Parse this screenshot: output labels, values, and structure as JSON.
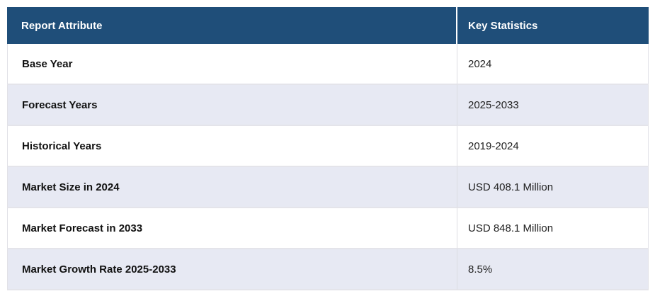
{
  "page": {
    "background": "#ffffff"
  },
  "table": {
    "colors": {
      "header_bg": "#1f4e79",
      "header_text": "#ffffff",
      "row_bg": "#ffffff",
      "row_alt_bg": "#e7e9f3",
      "border": "#e4e4ea",
      "attribute_text": "#111111",
      "value_text": "#222222"
    },
    "columns": [
      {
        "label": "Report Attribute"
      },
      {
        "label": "Key Statistics"
      }
    ],
    "rows": [
      {
        "attribute": "Base Year",
        "value": "2024"
      },
      {
        "attribute": "Forecast Years",
        "value": "2025-2033"
      },
      {
        "attribute": "Historical Years",
        "value": "2019-2024"
      },
      {
        "attribute": "Market Size in 2024",
        "value": "USD 408.1 Million"
      },
      {
        "attribute": "Market Forecast in 2033",
        "value": "USD 848.1 Million"
      },
      {
        "attribute": "Market Growth Rate 2025-2033",
        "value": "8.5%"
      }
    ]
  },
  "chart_data": {
    "type": "table",
    "columns": [
      "Report Attribute",
      "Key Statistics"
    ],
    "rows": [
      [
        "Base Year",
        "2024"
      ],
      [
        "Forecast Years",
        "2025-2033"
      ],
      [
        "Historical Years",
        "2019-2024"
      ],
      [
        "Market Size in 2024",
        "USD 408.1 Million"
      ],
      [
        "Market Forecast in 2033",
        "USD 848.1 Million"
      ],
      [
        "Market Growth Rate 2025-2033",
        "8.5%"
      ]
    ]
  }
}
